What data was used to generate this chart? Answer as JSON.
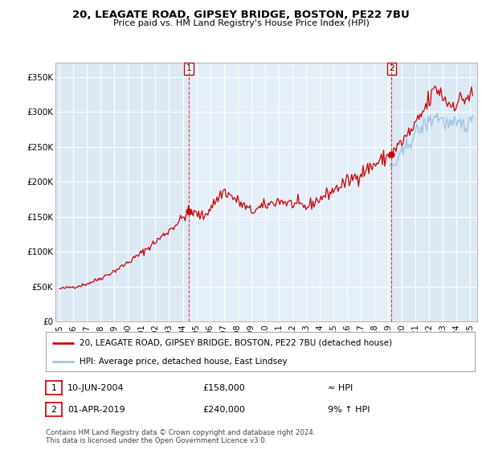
{
  "title_line1": "20, LEAGATE ROAD, GIPSEY BRIDGE, BOSTON, PE22 7BU",
  "title_line2": "Price paid vs. HM Land Registry's House Price Index (HPI)",
  "background_color": "#FFFFFF",
  "plot_bg_color": "#dce9f5",
  "red_line_color": "#cc0000",
  "blue_line_color": "#a0c4e0",
  "sale1_year": 2004.45,
  "sale2_year": 2019.25,
  "sale1_price": 158000,
  "sale2_price": 240000,
  "ylabel_ticks": [
    "£0",
    "£50K",
    "£100K",
    "£150K",
    "£200K",
    "£250K",
    "£300K",
    "£350K"
  ],
  "ytick_values": [
    0,
    50000,
    100000,
    150000,
    200000,
    250000,
    300000,
    350000
  ],
  "ylim": [
    0,
    370000
  ],
  "xlim_min": 1994.7,
  "xlim_max": 2025.5,
  "legend_line1": "20, LEAGATE ROAD, GIPSEY BRIDGE, BOSTON, PE22 7BU (detached house)",
  "legend_line2": "HPI: Average price, detached house, East Lindsey",
  "note1_date": "10-JUN-2004",
  "note1_price": "£158,000",
  "note1_hpi": "≈ HPI",
  "note2_date": "01-APR-2019",
  "note2_price": "£240,000",
  "note2_hpi": "9% ↑ HPI",
  "footer": "Contains HM Land Registry data © Crown copyright and database right 2024.\nThis data is licensed under the Open Government Licence v3.0."
}
